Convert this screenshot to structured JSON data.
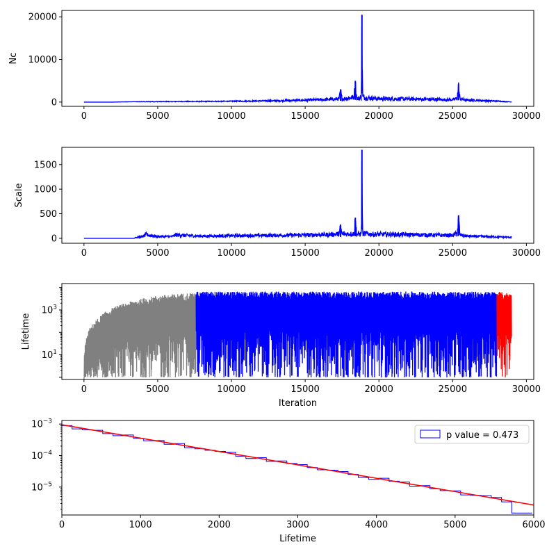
{
  "chart_data": [
    {
      "type": "line",
      "ylabel": "Nc",
      "xlabel": "",
      "xlim": [
        -1500,
        30500
      ],
      "ylim": [
        -1000,
        21500
      ],
      "xticks": [
        "0",
        "5000",
        "10000",
        "15000",
        "20000",
        "25000",
        "30000"
      ],
      "yticks": [
        "0",
        "10000",
        "20000"
      ],
      "color": "#0000ff",
      "x": [
        0,
        2000,
        3500,
        5000,
        8000,
        10000,
        13000,
        15000,
        16500,
        17300,
        17400,
        17500,
        17800,
        18300,
        18400,
        18500,
        18600,
        18800,
        18850,
        18900,
        19500,
        20500,
        22000,
        23000,
        25000,
        25300,
        25400,
        25500,
        26000,
        27000,
        28000,
        29000
      ],
      "y": [
        0,
        0,
        100,
        150,
        200,
        250,
        400,
        600,
        800,
        1000,
        3000,
        1000,
        1200,
        1500,
        5000,
        1200,
        1000,
        1500,
        20500,
        1500,
        1200,
        1000,
        1000,
        900,
        700,
        1200,
        4200,
        1000,
        600,
        500,
        300,
        50
      ]
    },
    {
      "type": "line",
      "ylabel": "Scale",
      "xlabel": "",
      "xlim": [
        -1500,
        30500
      ],
      "ylim": [
        -100,
        1850
      ],
      "xticks": [
        "0",
        "5000",
        "10000",
        "15000",
        "20000",
        "25000",
        "30000"
      ],
      "yticks": [
        "0",
        "500",
        "1000",
        "1500"
      ],
      "color": "#0000ff",
      "x": [
        0,
        3400,
        3500,
        4000,
        4200,
        5000,
        6000,
        6200,
        8000,
        10000,
        13000,
        15000,
        16500,
        17300,
        17400,
        17500,
        18300,
        18400,
        18500,
        18800,
        18850,
        18900,
        19500,
        22000,
        25000,
        25300,
        25400,
        25500,
        26000,
        28000,
        29000
      ],
      "y": [
        0,
        0,
        20,
        50,
        100,
        50,
        50,
        90,
        60,
        70,
        80,
        90,
        100,
        120,
        280,
        120,
        120,
        420,
        110,
        120,
        1800,
        130,
        110,
        100,
        80,
        130,
        470,
        90,
        60,
        40,
        30
      ]
    },
    {
      "type": "line",
      "ylabel": "Lifetime",
      "xlabel": "Iteration",
      "yscale": "log",
      "xlim": [
        -1500,
        30500
      ],
      "ylim": [
        0.8,
        15000
      ],
      "xticks": [
        "0",
        "5000",
        "10000",
        "15000",
        "20000",
        "25000",
        "30000"
      ],
      "series": [
        {
          "color": "#808080",
          "x_range": [
            0,
            7600
          ],
          "upper_envelope": [
            [
              0,
              1
            ],
            [
              200,
              60
            ],
            [
              1000,
              400
            ],
            [
              3000,
              2000
            ],
            [
              5000,
              4000
            ],
            [
              7600,
              5500
            ]
          ]
        },
        {
          "color": "#0000ff",
          "x_range": [
            7600,
            28000
          ],
          "upper_envelope": [
            [
              7600,
              6000
            ],
            [
              28000,
              6000
            ]
          ]
        },
        {
          "color": "#ff0000",
          "x_range": [
            28000,
            29000
          ],
          "upper_envelope": [
            [
              28000,
              6000
            ],
            [
              29000,
              5000
            ]
          ]
        }
      ]
    },
    {
      "type": "line",
      "xlabel": "Lifetime",
      "ylabel": "",
      "yscale": "log",
      "xlim": [
        0,
        6000
      ],
      "ylim": [
        1.3e-06,
        0.0013
      ],
      "xticks": [
        "0",
        "1000",
        "2000",
        "3000",
        "4000",
        "5000",
        "6000"
      ],
      "legend_label": "p value = 0.473",
      "legend_position": "top-right",
      "histogram": {
        "color": "#0000ff",
        "bin_width": 130,
        "bins": 46
      },
      "fit": {
        "color": "#ff0000",
        "x": [
          0,
          6000
        ],
        "y": [
          0.00095,
          2.7e-06
        ]
      }
    }
  ]
}
